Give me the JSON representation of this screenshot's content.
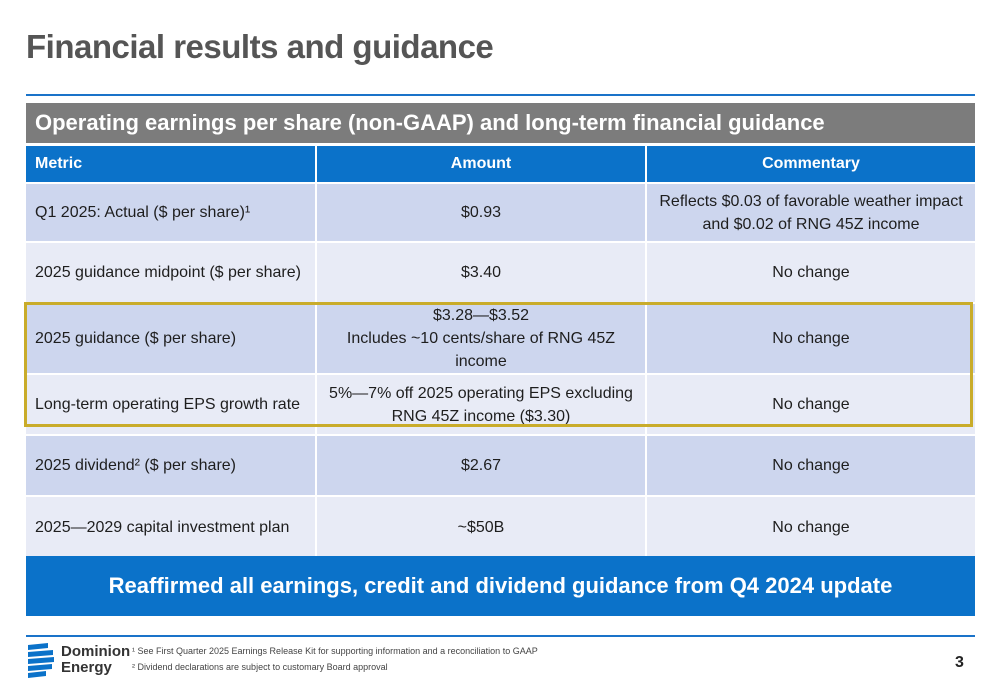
{
  "page": {
    "title": "Financial results and guidance",
    "page_number": "3"
  },
  "section": {
    "header": "Operating earnings per share (non-GAAP) and long-term financial guidance"
  },
  "table": {
    "columns": [
      "Metric",
      "Amount",
      "Commentary"
    ],
    "rows": [
      {
        "metric": "Q1 2025: Actual ($ per share)¹",
        "amount": "$0.93",
        "commentary": "Reflects $0.03 of favorable weather impact and $0.02 of RNG 45Z income",
        "highlighted": false
      },
      {
        "metric": "2025 guidance midpoint ($ per share)",
        "amount": "$3.40",
        "commentary": "No change",
        "highlighted": false
      },
      {
        "metric": "2025 guidance ($ per share)",
        "amount": "$3.28—$3.52",
        "amount_note": "Includes ~10 cents/share of RNG 45Z income",
        "commentary": "No change",
        "highlighted": true
      },
      {
        "metric": "Long-term operating EPS growth rate",
        "amount": "5%—7% off 2025 operating EPS excluding RNG 45Z income ($3.30)",
        "commentary": "No change",
        "highlighted": true
      },
      {
        "metric": "2025 dividend² ($ per share)",
        "amount": "$2.67",
        "commentary": "No change",
        "highlighted": false
      },
      {
        "metric": "2025—2029 capital investment plan",
        "amount": "~$50B",
        "commentary": "No change",
        "highlighted": false
      }
    ]
  },
  "banner": {
    "text": "Reaffirmed all earnings, credit and dividend guidance from Q4 2024 update"
  },
  "footer": {
    "logo_line1": "Dominion",
    "logo_line2": "Energy",
    "footnotes": [
      "¹ See First Quarter 2025 Earnings Release Kit for supporting information and a reconciliation to GAAP",
      "² Dividend declarations are subject to customary Board approval"
    ]
  },
  "colors": {
    "header_blue": "#0b72c9",
    "section_gray": "#7c7c7c",
    "row_dark": "#cdd6ee",
    "row_light": "#e8ebf6",
    "highlight_gold": "#c9ac2a"
  },
  "icons": {
    "logo": "dominion-energy-logo"
  }
}
